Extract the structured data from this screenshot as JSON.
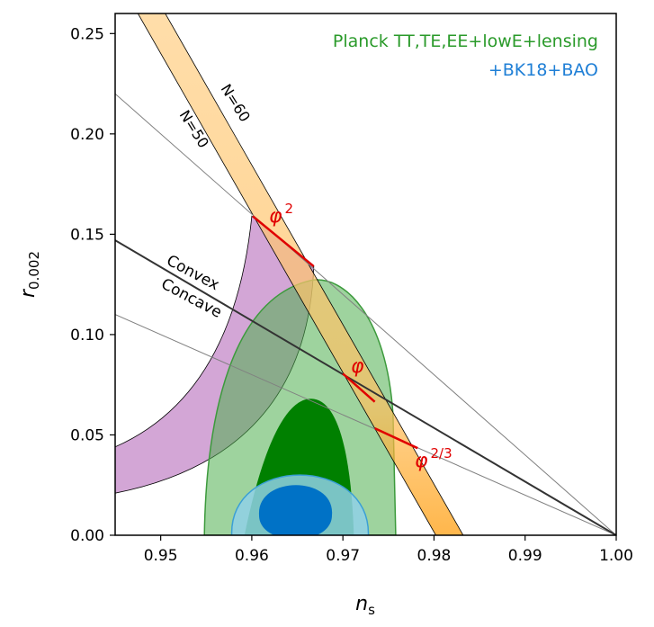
{
  "chart_data": {
    "type": "contour",
    "xlabel": "n",
    "xlabel_sub": "s",
    "ylabel": "r",
    "ylabel_sub": "0.002",
    "xlim": [
      0.945,
      1.0
    ],
    "ylim": [
      0.0,
      0.26
    ],
    "x_ticks": [
      "0.95",
      "0.96",
      "0.97",
      "0.98",
      "0.99",
      "1.00"
    ],
    "x_tick_values": [
      0.95,
      0.96,
      0.97,
      0.98,
      0.99,
      1.0
    ],
    "y_ticks": [
      "0.00",
      "0.05",
      "0.10",
      "0.15",
      "0.20",
      "0.25"
    ],
    "y_tick_values": [
      0.0,
      0.05,
      0.1,
      0.15,
      0.2,
      0.25
    ],
    "legend": [
      {
        "label": "Planck TT,TE,EE+lowE+lensing",
        "color": "#2a9a2a"
      },
      {
        "label": "+BK18+BAO",
        "color": "#1f7fd6"
      }
    ],
    "series": [
      {
        "name": "Planck TT,TE,EE+lowE+lensing",
        "color_inner": "#008000",
        "color_outer": "#8fcf8f",
        "contour_95": {
          "ns_range": [
            0.9548,
            0.9758
          ],
          "r_max": 0.128,
          "peak_ns": 0.968
        },
        "contour_68": {
          "ns_range": [
            0.9592,
            0.9712
          ],
          "r_max": 0.068,
          "peak_ns": 0.9665
        }
      },
      {
        "name": "+BK18+BAO",
        "color_inner": "#0072c6",
        "color_outer": "#8fd0e6",
        "contour_95": {
          "ns_range": [
            0.958,
            0.9728
          ],
          "r_max": 0.036,
          "center_ns": 0.9654
        },
        "contour_68": {
          "ns_range": [
            0.9608,
            0.9688
          ],
          "r_max": 0.026,
          "center_ns": 0.9649
        }
      }
    ],
    "lines": [
      {
        "name": "Convex/Concave boundary",
        "from": [
          0.945,
          0.147
        ],
        "to": [
          1.0,
          0.0
        ]
      },
      {
        "name": "upper thin line",
        "from": [
          0.945,
          0.22
        ],
        "to": [
          1.0,
          0.0
        ]
      },
      {
        "name": "lower thin line",
        "from": [
          0.945,
          0.11
        ],
        "to": [
          1.0,
          0.0
        ]
      }
    ],
    "band": {
      "name": "N=50 to N=60",
      "n50_line": {
        "from": [
          0.9475,
          0.26
        ],
        "to": [
          0.9802,
          0.0
        ]
      },
      "n60_line": {
        "from": [
          0.9505,
          0.26
        ],
        "to": [
          0.9832,
          0.0
        ]
      },
      "color": "#ffc566"
    },
    "region": {
      "name": "concave region",
      "color": "#c890cc",
      "left_edge": [
        [
          0.945,
          0.044
        ],
        [
          0.945,
          0.021
        ]
      ],
      "right_edge": [
        [
          0.96,
          0.159
        ],
        [
          0.9668,
          0.134
        ]
      ]
    },
    "annotations": {
      "convex": "Convex",
      "concave": "Concave",
      "n50": "N=50",
      "n60": "N=60",
      "phi2_base": "φ",
      "phi2_exp": "2",
      "phi_base": "φ",
      "phi23_base": "φ",
      "phi23_exp": "2/3"
    },
    "model_segments": [
      {
        "name": "phi^2",
        "from": [
          0.9601,
          0.159
        ],
        "to": [
          0.9668,
          0.134
        ]
      },
      {
        "name": "phi",
        "from": [
          0.97,
          0.0805
        ],
        "to": [
          0.9735,
          0.0665
        ]
      },
      {
        "name": "phi^2/3",
        "from": [
          0.9735,
          0.0533
        ],
        "to": [
          0.9782,
          0.0434
        ]
      }
    ],
    "grid": false
  }
}
